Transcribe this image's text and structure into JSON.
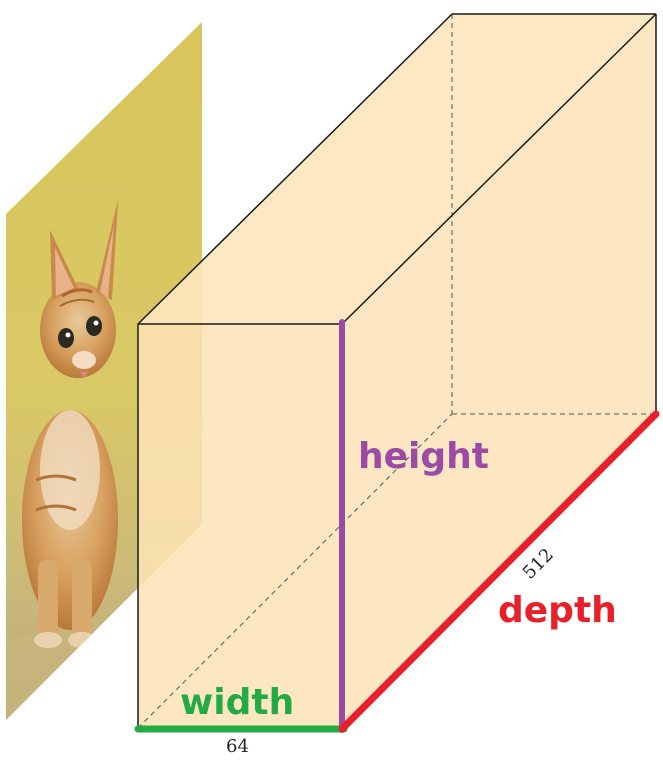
{
  "labels": {
    "width": "width",
    "height": "height",
    "depth": "depth",
    "width_value": "64",
    "depth_value": "512"
  },
  "colors": {
    "box_fill": "#fde5bd",
    "width_edge": "#22aa44",
    "height_edge": "#9b4aa6",
    "depth_edge": "#e8202a",
    "outline": "#1a1a1a"
  },
  "image_panel": {
    "content": "photo of an orange tabby kitten sitting on a yellow background"
  }
}
